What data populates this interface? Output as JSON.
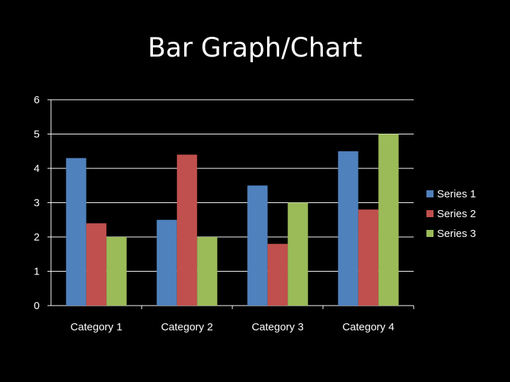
{
  "slide": {
    "title": "Bar Graph/Chart"
  },
  "chart_data": {
    "type": "bar",
    "categories": [
      "Category 1",
      "Category 2",
      "Category 3",
      "Category 4"
    ],
    "series": [
      {
        "name": "Series 1",
        "values": [
          4.3,
          2.5,
          3.5,
          4.5
        ],
        "color": "#4f81bd"
      },
      {
        "name": "Series 2",
        "values": [
          2.4,
          4.4,
          1.8,
          2.8
        ],
        "color": "#c0504d"
      },
      {
        "name": "Series 3",
        "values": [
          2.0,
          2.0,
          3.0,
          5.0
        ],
        "color": "#9bbb59"
      }
    ],
    "title": "",
    "xlabel": "",
    "ylabel": "",
    "ylim": [
      0,
      6
    ],
    "yticks": [
      0,
      1,
      2,
      3,
      4,
      5,
      6
    ],
    "grid": true,
    "legend": "right",
    "background": "#000000",
    "text_color": "#ffffff",
    "gridline_color": "#ffffff"
  }
}
